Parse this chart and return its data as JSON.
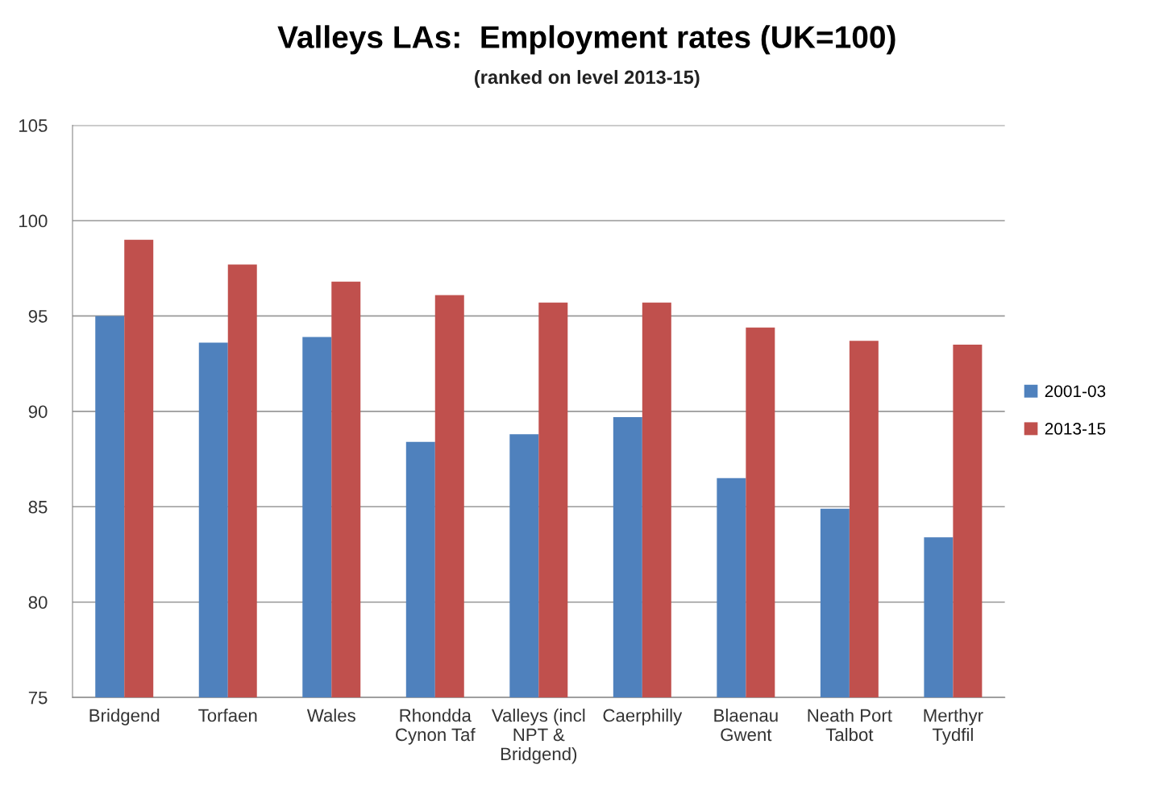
{
  "chart_data": {
    "type": "bar",
    "title": "Valleys LAs:  Employment rates (UK=100)",
    "subtitle": "(ranked on level 2013-15)",
    "categories": [
      "Bridgend",
      "Torfaen",
      "Wales",
      "Rhondda\nCynon Taf",
      "Valleys (incl\nNPT &\nBridgend)",
      "Caerphilly",
      "Blaenau\nGwent",
      "Neath Port\nTalbot",
      "Merthyr\nTydfil"
    ],
    "series": [
      {
        "name": "2001-03",
        "color": "#4f81bd",
        "values": [
          95.0,
          93.6,
          93.9,
          88.4,
          88.8,
          89.7,
          86.5,
          84.9,
          83.4
        ]
      },
      {
        "name": "2013-15",
        "color": "#c0504d",
        "values": [
          99.0,
          97.7,
          96.8,
          96.1,
          95.7,
          95.7,
          94.4,
          93.7,
          93.5
        ]
      }
    ],
    "ylim": [
      75,
      105
    ],
    "yticks": [
      75,
      80,
      85,
      90,
      95,
      100,
      105
    ],
    "grid": "y",
    "legend": "right"
  }
}
